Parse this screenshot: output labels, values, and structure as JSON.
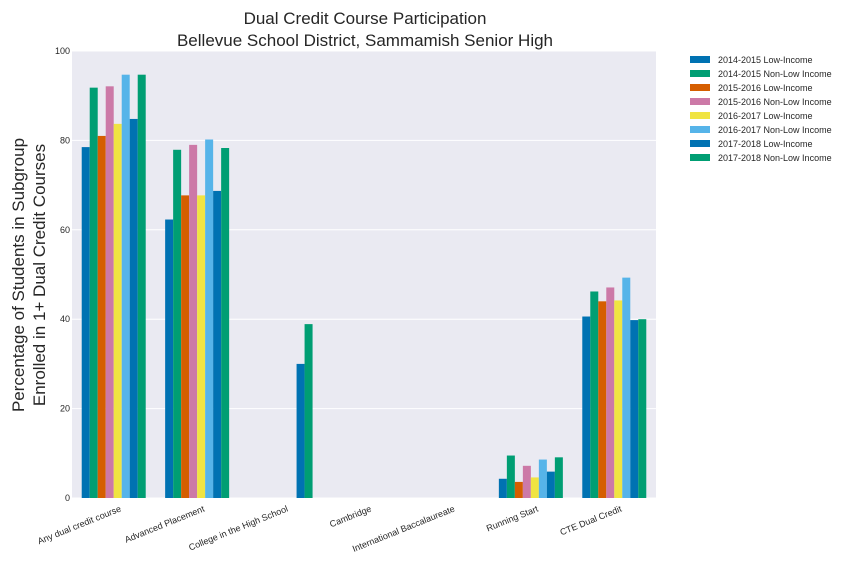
{
  "chart_data": {
    "type": "bar",
    "title": [
      "Dual Credit Course Participation",
      "Bellevue School District, Sammamish Senior High"
    ],
    "ylabel": [
      "Percentage of Students in Subgroup",
      "Enrolled in 1+ Dual Credit Courses"
    ],
    "xlabel": "",
    "ylim": [
      0,
      100
    ],
    "yticks": [
      0,
      20,
      40,
      60,
      80,
      100
    ],
    "grid": true,
    "legend_position": "outside-top-right",
    "categories": [
      "Any dual credit course",
      "Advanced Placement",
      "College in the High School",
      "Cambridge",
      "International Baccalaureate",
      "Running Start",
      "CTE Dual Credit"
    ],
    "series": [
      {
        "name": "2014-2015 Low-Income",
        "color": "#0072b2",
        "values": [
          78.5,
          62.3,
          null,
          null,
          null,
          4.3,
          40.6
        ]
      },
      {
        "name": "2014-2015 Non-Low Income",
        "color": "#009e73",
        "values": [
          91.8,
          77.9,
          null,
          null,
          null,
          9.5,
          46.2
        ]
      },
      {
        "name": "2015-2016 Low-Income",
        "color": "#d55e00",
        "values": [
          81.0,
          67.7,
          null,
          null,
          null,
          3.6,
          44.0
        ]
      },
      {
        "name": "2015-2016 Non-Low Income",
        "color": "#cc79a7",
        "values": [
          92.1,
          79.0,
          null,
          null,
          null,
          7.2,
          47.1
        ]
      },
      {
        "name": "2016-2017 Low-Income",
        "color": "#f0e442",
        "values": [
          83.7,
          67.7,
          null,
          null,
          null,
          4.6,
          44.2
        ]
      },
      {
        "name": "2016-2017 Non-Low Income",
        "color": "#56b4e9",
        "values": [
          94.7,
          80.2,
          null,
          null,
          null,
          8.6,
          49.3
        ]
      },
      {
        "name": "2017-2018 Low-Income",
        "color": "#0072b2",
        "values": [
          84.8,
          68.7,
          30.0,
          null,
          null,
          5.9,
          39.8
        ]
      },
      {
        "name": "2017-2018 Non-Low Income",
        "color": "#009e73",
        "values": [
          94.7,
          78.3,
          38.9,
          null,
          null,
          9.1,
          40.0
        ]
      }
    ]
  }
}
